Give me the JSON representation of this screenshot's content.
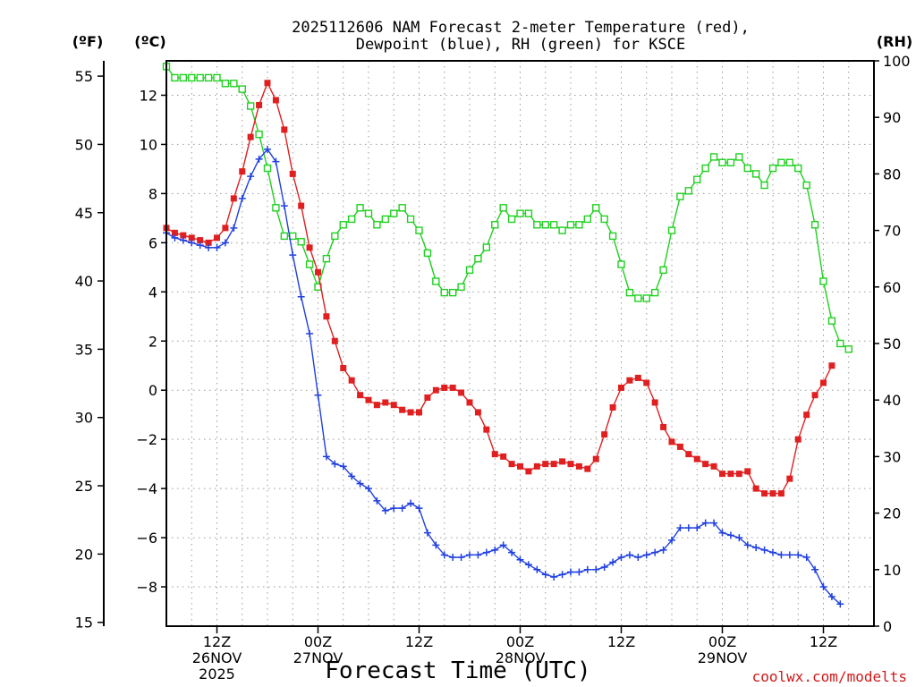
{
  "chart_data": {
    "type": "line",
    "title_lines": [
      "2025112606 NAM Forecast 2-meter Temperature (red),",
      "Dewpoint (blue), RH (green) for KSCE"
    ],
    "xlabel": "Forecast Time (UTC)",
    "credit": "coolwx.com/modelts",
    "unit_labels": {
      "fahrenheit": "(ºF)",
      "celsius": "(ºC)",
      "rh": "(RH)"
    },
    "x_range_hours": [
      0,
      84
    ],
    "x_ticks": [
      {
        "hour": 6,
        "lines": [
          "12Z",
          "26NOV",
          "2025"
        ]
      },
      {
        "hour": 18,
        "lines": [
          "00Z",
          "27NOV"
        ]
      },
      {
        "hour": 30,
        "lines": [
          "12Z"
        ]
      },
      {
        "hour": 42,
        "lines": [
          "00Z",
          "28NOV"
        ]
      },
      {
        "hour": 54,
        "lines": [
          "12Z"
        ]
      },
      {
        "hour": 66,
        "lines": [
          "00Z",
          "29NOV"
        ]
      },
      {
        "hour": 78,
        "lines": [
          "12Z"
        ]
      }
    ],
    "celsius_axis": {
      "range": [
        -9.6,
        13.4
      ],
      "ticks": [
        12,
        10,
        8,
        6,
        4,
        2,
        0,
        -2,
        -4,
        -6,
        -8
      ]
    },
    "fahrenheit_axis": {
      "ticks": [
        55,
        50,
        45,
        40,
        35,
        30,
        25,
        20,
        15
      ]
    },
    "rh_axis": {
      "range": [
        0,
        100
      ],
      "ticks": [
        100,
        90,
        80,
        70,
        60,
        50,
        40,
        30,
        20,
        10,
        0
      ]
    },
    "series": [
      {
        "name": "Temperature",
        "unit": "C",
        "color": "#e02020",
        "marker": "filled-square",
        "values": [
          6.6,
          6.4,
          6.3,
          6.2,
          6.1,
          6.0,
          6.2,
          6.6,
          7.8,
          8.9,
          10.3,
          11.6,
          12.5,
          11.8,
          10.6,
          8.8,
          7.5,
          5.8,
          4.8,
          3.0,
          2.0,
          0.9,
          0.4,
          -0.2,
          -0.4,
          -0.6,
          -0.5,
          -0.6,
          -0.8,
          -0.9,
          -0.9,
          -0.3,
          0.0,
          0.1,
          0.1,
          -0.1,
          -0.5,
          -0.9,
          -1.6,
          -2.6,
          -2.7,
          -3.0,
          -3.1,
          -3.3,
          -3.1,
          -3.0,
          -3.0,
          -2.9,
          -3.0,
          -3.1,
          -3.2,
          -2.8,
          -1.8,
          -0.7,
          0.1,
          0.4,
          0.5,
          0.3,
          -0.5,
          -1.5,
          -2.1,
          -2.3,
          -2.6,
          -2.8,
          -3.0,
          -3.1,
          -3.4,
          -3.4,
          -3.4,
          -3.3,
          -4.0,
          -4.2,
          -4.2,
          -4.2,
          -3.6,
          -2.0,
          -1.0,
          -0.2,
          0.3,
          1.0
        ]
      },
      {
        "name": "Dewpoint",
        "unit": "C",
        "color": "#2040e0",
        "marker": "plus",
        "values": [
          6.4,
          6.2,
          6.1,
          6.0,
          5.9,
          5.8,
          5.8,
          6.0,
          6.6,
          7.8,
          8.7,
          9.4,
          9.8,
          9.3,
          7.5,
          5.5,
          3.8,
          2.3,
          -0.2,
          -2.7,
          -3.0,
          -3.1,
          -3.5,
          -3.8,
          -4.0,
          -4.5,
          -4.9,
          -4.8,
          -4.8,
          -4.6,
          -4.8,
          -5.8,
          -6.3,
          -6.7,
          -6.8,
          -6.8,
          -6.7,
          -6.7,
          -6.6,
          -6.5,
          -6.3,
          -6.6,
          -6.9,
          -7.1,
          -7.3,
          -7.5,
          -7.6,
          -7.5,
          -7.4,
          -7.4,
          -7.3,
          -7.3,
          -7.2,
          -7.0,
          -6.8,
          -6.7,
          -6.8,
          -6.7,
          -6.6,
          -6.5,
          -6.1,
          -5.6,
          -5.6,
          -5.6,
          -5.4,
          -5.4,
          -5.8,
          -5.9,
          -6.0,
          -6.3,
          -6.4,
          -6.5,
          -6.6,
          -6.7,
          -6.7,
          -6.7,
          -6.8,
          -7.3,
          -8.0,
          -8.4,
          -8.7
        ]
      },
      {
        "name": "RH",
        "unit": "%",
        "color": "#20d020",
        "marker": "open-square",
        "values": [
          99,
          97,
          97,
          97,
          97,
          97,
          97,
          96,
          96,
          95,
          92,
          87,
          81,
          74,
          69,
          69,
          68,
          64,
          60,
          65,
          69,
          71,
          72,
          74,
          73,
          71,
          72,
          73,
          74,
          72,
          70,
          66,
          61,
          59,
          59,
          60,
          63,
          65,
          67,
          71,
          74,
          72,
          73,
          73,
          71,
          71,
          71,
          70,
          71,
          71,
          72,
          74,
          72,
          69,
          64,
          59,
          58,
          58,
          59,
          63,
          70,
          76,
          77,
          79,
          81,
          83,
          82,
          82,
          83,
          81,
          80,
          78,
          81,
          82,
          82,
          81,
          78,
          71,
          61,
          54,
          50,
          49
        ]
      }
    ]
  }
}
